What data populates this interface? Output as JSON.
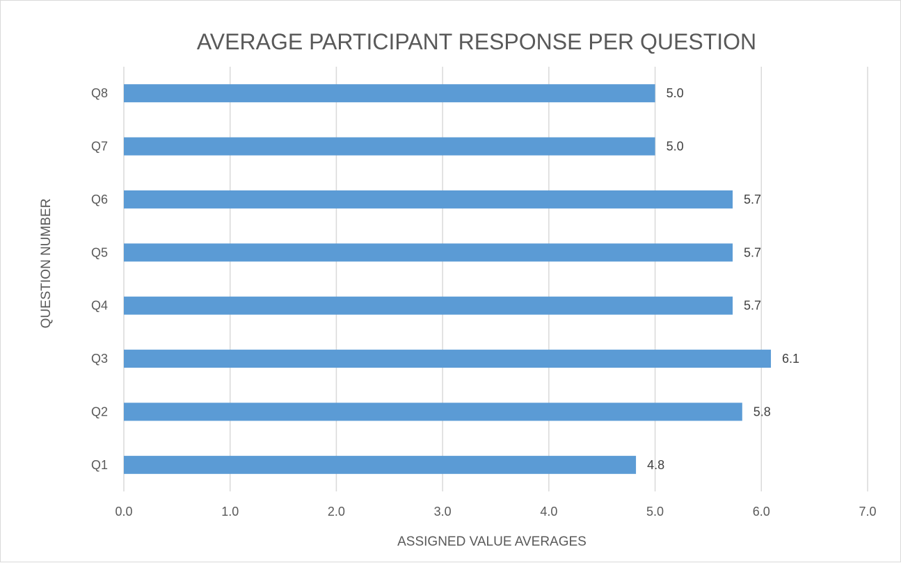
{
  "chart_data": {
    "type": "bar",
    "orientation": "horizontal",
    "title": "AVERAGE PARTICIPANT RESPONSE PER QUESTION",
    "xlabel": "ASSIGNED VALUE AVERAGES",
    "ylabel": "QUESTION NUMBER",
    "categories": [
      "Q1",
      "Q2",
      "Q3",
      "Q4",
      "Q5",
      "Q6",
      "Q7",
      "Q8"
    ],
    "values": [
      4.82,
      5.82,
      6.09,
      5.73,
      5.73,
      5.73,
      5.0,
      5.0
    ],
    "data_labels": [
      "4.8",
      "5.8",
      "6.1",
      "5.7",
      "5.7",
      "5.7",
      "5.0",
      "5.0"
    ],
    "xlim": [
      0,
      7
    ],
    "x_ticks": [
      "0.0",
      "1.0",
      "2.0",
      "3.0",
      "4.0",
      "5.0",
      "6.0",
      "7.0"
    ],
    "grid": "vertical",
    "legend": "none",
    "bar_color": "#5b9bd5"
  }
}
